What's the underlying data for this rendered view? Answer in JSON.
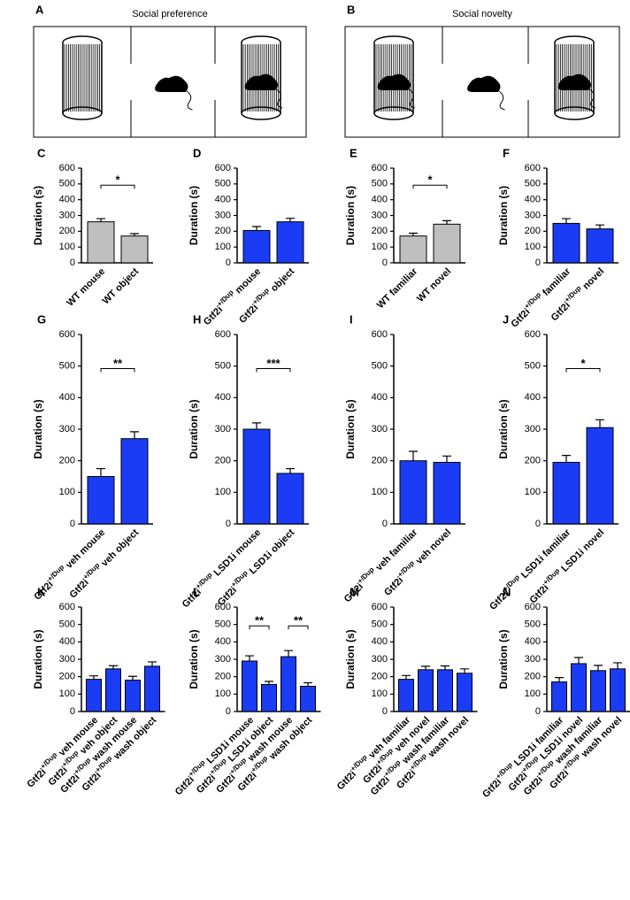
{
  "diagrams": [
    {
      "label": "A",
      "title": "Social preference"
    },
    {
      "label": "B",
      "title": "Social novelty"
    }
  ],
  "chart_data": [
    {
      "panel": "C",
      "type": "bar",
      "ylabel": "Duration (s)",
      "categories": [
        [
          "WT mouse"
        ],
        [
          "WT object"
        ]
      ],
      "values": [
        260,
        170
      ],
      "errors": [
        20,
        15
      ],
      "color": "#bfbfbf",
      "ylim": [
        0,
        600
      ],
      "yticks": [
        0,
        100,
        200,
        300,
        400,
        500,
        600
      ],
      "significance": [
        {
          "from": 0,
          "to": 1,
          "label": "*"
        }
      ]
    },
    {
      "panel": "D",
      "type": "bar",
      "ylabel": "Duration (s)",
      "categories": [
        [
          "Gtf2i",
          "+/Dup",
          " mouse"
        ],
        [
          "Gtf2i",
          "+/Dup",
          " object"
        ]
      ],
      "values": [
        205,
        260
      ],
      "errors": [
        25,
        22
      ],
      "color": "#1a3cf5",
      "ylim": [
        0,
        600
      ],
      "yticks": [
        0,
        100,
        200,
        300,
        400,
        500,
        600
      ],
      "significance": []
    },
    {
      "panel": "E",
      "type": "bar",
      "ylabel": "Duration (s)",
      "categories": [
        [
          "WT familiar"
        ],
        [
          "WT novel"
        ]
      ],
      "values": [
        170,
        245
      ],
      "errors": [
        18,
        22
      ],
      "color": "#bfbfbf",
      "ylim": [
        0,
        600
      ],
      "yticks": [
        0,
        100,
        200,
        300,
        400,
        500,
        600
      ],
      "significance": [
        {
          "from": 0,
          "to": 1,
          "label": "*"
        }
      ]
    },
    {
      "panel": "F",
      "type": "bar",
      "ylabel": "Duration (s)",
      "categories": [
        [
          "Gtf2i",
          "+/Dup",
          " familiar"
        ],
        [
          "Gtf2i",
          "+/Dup",
          " novel"
        ]
      ],
      "values": [
        250,
        215
      ],
      "errors": [
        30,
        25
      ],
      "color": "#1a3cf5",
      "ylim": [
        0,
        600
      ],
      "yticks": [
        0,
        100,
        200,
        300,
        400,
        500,
        600
      ],
      "significance": []
    },
    {
      "panel": "G",
      "type": "bar",
      "ylabel": "Duration (s)",
      "categories": [
        [
          "Gtf2i",
          "+/Dup",
          " veh mouse"
        ],
        [
          "Gtf2i",
          "+/Dup",
          " veh object"
        ]
      ],
      "values": [
        150,
        270
      ],
      "errors": [
        25,
        22
      ],
      "color": "#1a3cf5",
      "ylim": [
        0,
        600
      ],
      "yticks": [
        0,
        100,
        200,
        300,
        400,
        500,
        600
      ],
      "significance": [
        {
          "from": 0,
          "to": 1,
          "label": "**"
        }
      ]
    },
    {
      "panel": "H",
      "type": "bar",
      "ylabel": "Duration (s)",
      "categories": [
        [
          "Gtf2i",
          "+/Dup",
          " LSD1i mouse"
        ],
        [
          "Gtf2i",
          "+/Dup",
          " LSD1i object"
        ]
      ],
      "values": [
        300,
        160
      ],
      "errors": [
        20,
        15
      ],
      "color": "#1a3cf5",
      "ylim": [
        0,
        600
      ],
      "yticks": [
        0,
        100,
        200,
        300,
        400,
        500,
        600
      ],
      "significance": [
        {
          "from": 0,
          "to": 1,
          "label": "***"
        }
      ]
    },
    {
      "panel": "I",
      "type": "bar",
      "ylabel": "Duration (s)",
      "categories": [
        [
          "Gtf2i",
          "+/Dup",
          " veh familiar"
        ],
        [
          "Gtf2i",
          "+/Dup",
          " veh novel"
        ]
      ],
      "values": [
        200,
        195
      ],
      "errors": [
        30,
        20
      ],
      "color": "#1a3cf5",
      "ylim": [
        0,
        600
      ],
      "yticks": [
        0,
        100,
        200,
        300,
        400,
        500,
        600
      ],
      "significance": []
    },
    {
      "panel": "J",
      "type": "bar",
      "ylabel": "Duration (s)",
      "categories": [
        [
          "Gtf2i",
          "+/Dup",
          " LSD1i familiar"
        ],
        [
          "Gtf2i",
          "+/Dup",
          " LSD1i novel"
        ]
      ],
      "values": [
        195,
        305
      ],
      "errors": [
        22,
        25
      ],
      "color": "#1a3cf5",
      "ylim": [
        0,
        600
      ],
      "yticks": [
        0,
        100,
        200,
        300,
        400,
        500,
        600
      ],
      "significance": [
        {
          "from": 0,
          "to": 1,
          "label": "*"
        }
      ]
    },
    {
      "panel": "K",
      "type": "bar",
      "ylabel": "Duration (s)",
      "categories": [
        [
          "Gtf2i",
          "+/Dup",
          " veh mouse"
        ],
        [
          "Gtf2i",
          "+/Dup",
          " veh object"
        ],
        [
          "Gtf2i",
          "+/Dup",
          " wash mouse"
        ],
        [
          "Gtf2i",
          "+/Dup",
          " wash object"
        ]
      ],
      "values": [
        185,
        245,
        180,
        260
      ],
      "errors": [
        20,
        18,
        22,
        25
      ],
      "color": "#1a3cf5",
      "ylim": [
        0,
        600
      ],
      "yticks": [
        0,
        100,
        200,
        300,
        400,
        500,
        600
      ],
      "significance": []
    },
    {
      "panel": "L",
      "type": "bar",
      "ylabel": "Duration (s)",
      "categories": [
        [
          "Gtf2i",
          "+/Dup",
          " LSD1i mouse"
        ],
        [
          "Gtf2i",
          "+/Dup",
          " LSD1i object"
        ],
        [
          "Gtf2i",
          "+/Dup",
          " wash mouse"
        ],
        [
          "Gtf2i",
          "+/Dup",
          " wash object"
        ]
      ],
      "values": [
        290,
        155,
        315,
        145
      ],
      "errors": [
        30,
        18,
        35,
        20
      ],
      "color": "#1a3cf5",
      "ylim": [
        0,
        600
      ],
      "yticks": [
        0,
        100,
        200,
        300,
        400,
        500,
        600
      ],
      "significance": [
        {
          "from": 0,
          "to": 1,
          "label": "**"
        },
        {
          "from": 2,
          "to": 3,
          "label": "**"
        }
      ]
    },
    {
      "panel": "M",
      "type": "bar",
      "ylabel": "Duration (s)",
      "categories": [
        [
          "Gtf2i",
          "+/Dup",
          " veh familiar"
        ],
        [
          "Gtf2i",
          "+/Dup",
          " veh novel"
        ],
        [
          "Gtf2i",
          "+/Dup",
          " wash familiar"
        ],
        [
          "Gtf2i",
          "+/Dup",
          " wash novel"
        ]
      ],
      "values": [
        185,
        240,
        240,
        220
      ],
      "errors": [
        22,
        20,
        22,
        25
      ],
      "color": "#1a3cf5",
      "ylim": [
        0,
        600
      ],
      "yticks": [
        0,
        100,
        200,
        300,
        400,
        500,
        600
      ],
      "significance": []
    },
    {
      "panel": "N",
      "type": "bar",
      "ylabel": "Duration (s)",
      "categories": [
        [
          "Gtf2i",
          "+/Dup",
          " LSD1i familiar"
        ],
        [
          "Gtf2i",
          "+/Dup",
          " LSD1i novel"
        ],
        [
          "Gtf2i",
          "+/Dup",
          " wash familiar"
        ],
        [
          "Gtf2i",
          "+/Dup",
          " wash novel"
        ]
      ],
      "values": [
        170,
        275,
        235,
        245
      ],
      "errors": [
        25,
        35,
        30,
        35
      ],
      "color": "#1a3cf5",
      "ylim": [
        0,
        600
      ],
      "yticks": [
        0,
        100,
        200,
        300,
        400,
        500,
        600
      ],
      "significance": []
    }
  ]
}
